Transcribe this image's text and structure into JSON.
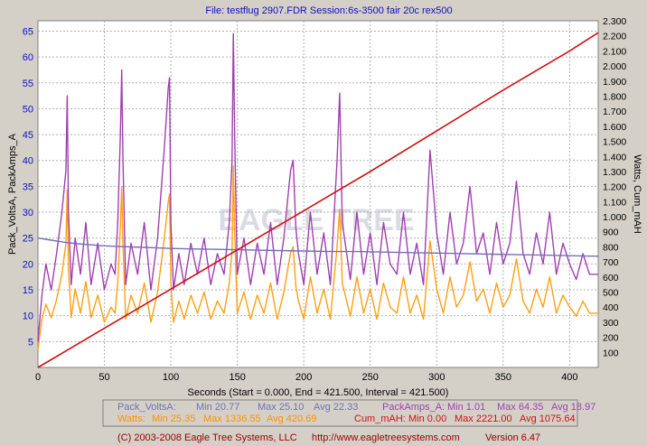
{
  "chart_data": {
    "type": "line",
    "title": "File: testflug 2907.FDR   Session:6s-3500 fair 20c rex500",
    "xlabel": "Seconds (Start = 0.000,  End = 421.500,  Interval =  421.500)",
    "ylabel_left": "Pack_VoltsA, PackAmps_A",
    "ylabel_right": "Watts, Cum_mAH",
    "xlim": [
      0,
      421.5
    ],
    "ylim_left": [
      0,
      67
    ],
    "ylim_right": [
      0,
      2.3
    ],
    "x_ticks": [
      "0",
      "50",
      "100",
      "150",
      "200",
      "250",
      "300",
      "350",
      "400"
    ],
    "y_left_ticks": [
      "5",
      "10",
      "15",
      "20",
      "25",
      "30",
      "35",
      "40",
      "45",
      "50",
      "55",
      "60",
      "65"
    ],
    "y_right_ticks": [
      "100",
      "200",
      "300",
      "400",
      "500",
      "600",
      "700",
      "800",
      "900",
      "1.000",
      "1.100",
      "1.200",
      "1.300",
      "1.400",
      "1.500",
      "1.600",
      "1.700",
      "1.800",
      "1.900",
      "2.000",
      "2.100",
      "2.200",
      "2.300"
    ],
    "series": [
      {
        "name": "Pack_VoltsA",
        "color": "#7070b8",
        "axis": "left",
        "x": [
          0,
          10,
          20,
          30,
          40,
          50,
          60,
          70,
          80,
          90,
          100,
          120,
          140,
          160,
          180,
          200,
          220,
          240,
          260,
          280,
          300,
          320,
          340,
          360,
          380,
          400,
          421.5
        ],
        "y": [
          25.0,
          24.6,
          24.2,
          23.9,
          23.7,
          23.5,
          23.4,
          23.3,
          23.2,
          23.1,
          23.0,
          22.9,
          22.8,
          22.7,
          22.6,
          22.5,
          22.4,
          22.4,
          22.3,
          22.2,
          22.1,
          22.0,
          21.9,
          21.8,
          21.7,
          21.6,
          21.5
        ],
        "min": "20.77",
        "max": "25.10",
        "avg": "22.33"
      },
      {
        "name": "PackAmps_A",
        "color": "#a040b0",
        "axis": "left",
        "x": [
          0,
          3,
          6,
          10,
          14,
          18,
          21,
          22,
          23,
          25,
          28,
          32,
          36,
          40,
          45,
          50,
          55,
          58,
          60,
          62,
          63,
          64,
          66,
          70,
          75,
          80,
          85,
          90,
          95,
          98,
          99,
          100,
          102,
          106,
          110,
          115,
          120,
          125,
          130,
          135,
          140,
          144,
          146,
          147,
          148,
          150,
          155,
          160,
          165,
          170,
          175,
          180,
          185,
          190,
          192,
          194,
          196,
          200,
          205,
          210,
          215,
          220,
          225,
          227,
          229,
          235,
          240,
          245,
          250,
          255,
          260,
          265,
          270,
          275,
          280,
          285,
          290,
          295,
          300,
          305,
          310,
          315,
          320,
          325,
          330,
          335,
          340,
          345,
          350,
          355,
          360,
          365,
          370,
          375,
          380,
          385,
          390,
          395,
          400,
          405,
          410,
          415,
          421.5
        ],
        "y": [
          5,
          14,
          20,
          15,
          22,
          30,
          38,
          52.5,
          30,
          16,
          25,
          18,
          28,
          16,
          24,
          15,
          20,
          18,
          28,
          45,
          57.5,
          40,
          16,
          24,
          18,
          28,
          15,
          25,
          42,
          54,
          56,
          28,
          15,
          22,
          16,
          24,
          18,
          25,
          16,
          22,
          18,
          28,
          40,
          64.5,
          45,
          18,
          25,
          16,
          24,
          18,
          28,
          16,
          25,
          38,
          40,
          27,
          22,
          16,
          30,
          18,
          26,
          16,
          40,
          53,
          28,
          17,
          30,
          18,
          26,
          16,
          28,
          20,
          18,
          30,
          18,
          24,
          16,
          42,
          26,
          18,
          30,
          20,
          24,
          35,
          22,
          26,
          18,
          28,
          20,
          24,
          36,
          22,
          18,
          26,
          20,
          30,
          18,
          24,
          20,
          17,
          22,
          18,
          18
        ],
        "min": "1.01",
        "max": "64.35",
        "avg": "18.97"
      },
      {
        "name": "Watts",
        "color": "#ffa010",
        "axis": "right",
        "x": [
          0,
          3,
          6,
          10,
          14,
          18,
          21,
          22,
          23,
          25,
          28,
          32,
          36,
          40,
          45,
          50,
          55,
          58,
          60,
          62,
          63,
          64,
          66,
          70,
          75,
          80,
          85,
          90,
          95,
          98,
          99,
          100,
          102,
          106,
          110,
          115,
          120,
          125,
          130,
          135,
          140,
          144,
          146,
          147,
          148,
          150,
          155,
          160,
          165,
          170,
          175,
          180,
          185,
          190,
          192,
          194,
          196,
          200,
          205,
          210,
          215,
          220,
          225,
          227,
          229,
          235,
          240,
          245,
          250,
          255,
          260,
          265,
          270,
          275,
          280,
          285,
          290,
          295,
          300,
          305,
          310,
          315,
          320,
          325,
          330,
          335,
          340,
          345,
          350,
          355,
          360,
          365,
          370,
          375,
          380,
          385,
          390,
          395,
          400,
          405,
          410,
          415,
          421.5
        ],
        "y": [
          120,
          320,
          420,
          330,
          450,
          620,
          820,
          1180,
          650,
          330,
          520,
          360,
          570,
          330,
          480,
          300,
          400,
          360,
          560,
          940,
          1200,
          820,
          320,
          480,
          360,
          560,
          300,
          500,
          850,
          1100,
          1150,
          560,
          300,
          440,
          320,
          480,
          360,
          500,
          320,
          440,
          360,
          560,
          780,
          1336,
          900,
          360,
          500,
          320,
          480,
          360,
          560,
          320,
          500,
          760,
          800,
          540,
          440,
          320,
          600,
          360,
          520,
          320,
          800,
          1050,
          560,
          340,
          600,
          360,
          520,
          320,
          560,
          400,
          360,
          600,
          360,
          480,
          320,
          840,
          520,
          360,
          600,
          400,
          480,
          700,
          440,
          520,
          360,
          560,
          400,
          480,
          720,
          440,
          360,
          520,
          400,
          600,
          360,
          480,
          400,
          340,
          440,
          360,
          360
        ],
        "min": "25.35",
        "max": "1336.55",
        "avg": "420.69"
      },
      {
        "name": "Cum_mAH",
        "color": "#d01010",
        "axis": "right",
        "x": [
          0,
          50,
          100,
          150,
          200,
          250,
          300,
          350,
          400,
          421.5
        ],
        "y": [
          0,
          260,
          520,
          780,
          1040,
          1300,
          1570,
          1840,
          2100,
          2221
        ],
        "min": "0.00",
        "max": "2221.00",
        "avg": "1075.64"
      }
    ]
  },
  "legend": {
    "volts": {
      "name": "Pack_VoltsA:",
      "min": "Min 20.77",
      "max": "Max 25.10",
      "avg": "Avg 22.33"
    },
    "amps": {
      "name": "PackAmps_A:",
      "min": "Min 1.01",
      "max": "Max 64.35",
      "avg": "Avg 18.97"
    },
    "watts": {
      "name": "Watts:",
      "min": "Min 25.35",
      "max": "Max 1336.55",
      "avg": "Avg 420.69"
    },
    "mah": {
      "name": "Cum_mAH:",
      "min": "Min 0.00",
      "max": "Max 2221.00",
      "avg": "Avg 1075.64"
    }
  },
  "footer": {
    "copyright": "(C) 2003-2008 Eagle Tree Systems, LLC",
    "url": "http://www.eagletreesystems.com",
    "version": "Version 6.47"
  },
  "watermark": "EAGLE TREE",
  "colors": {
    "background": "#d4d0c8",
    "plot": "#ffffff",
    "title": "#1010c0",
    "footer": "#a00000",
    "grid": "#a0a0a0"
  }
}
